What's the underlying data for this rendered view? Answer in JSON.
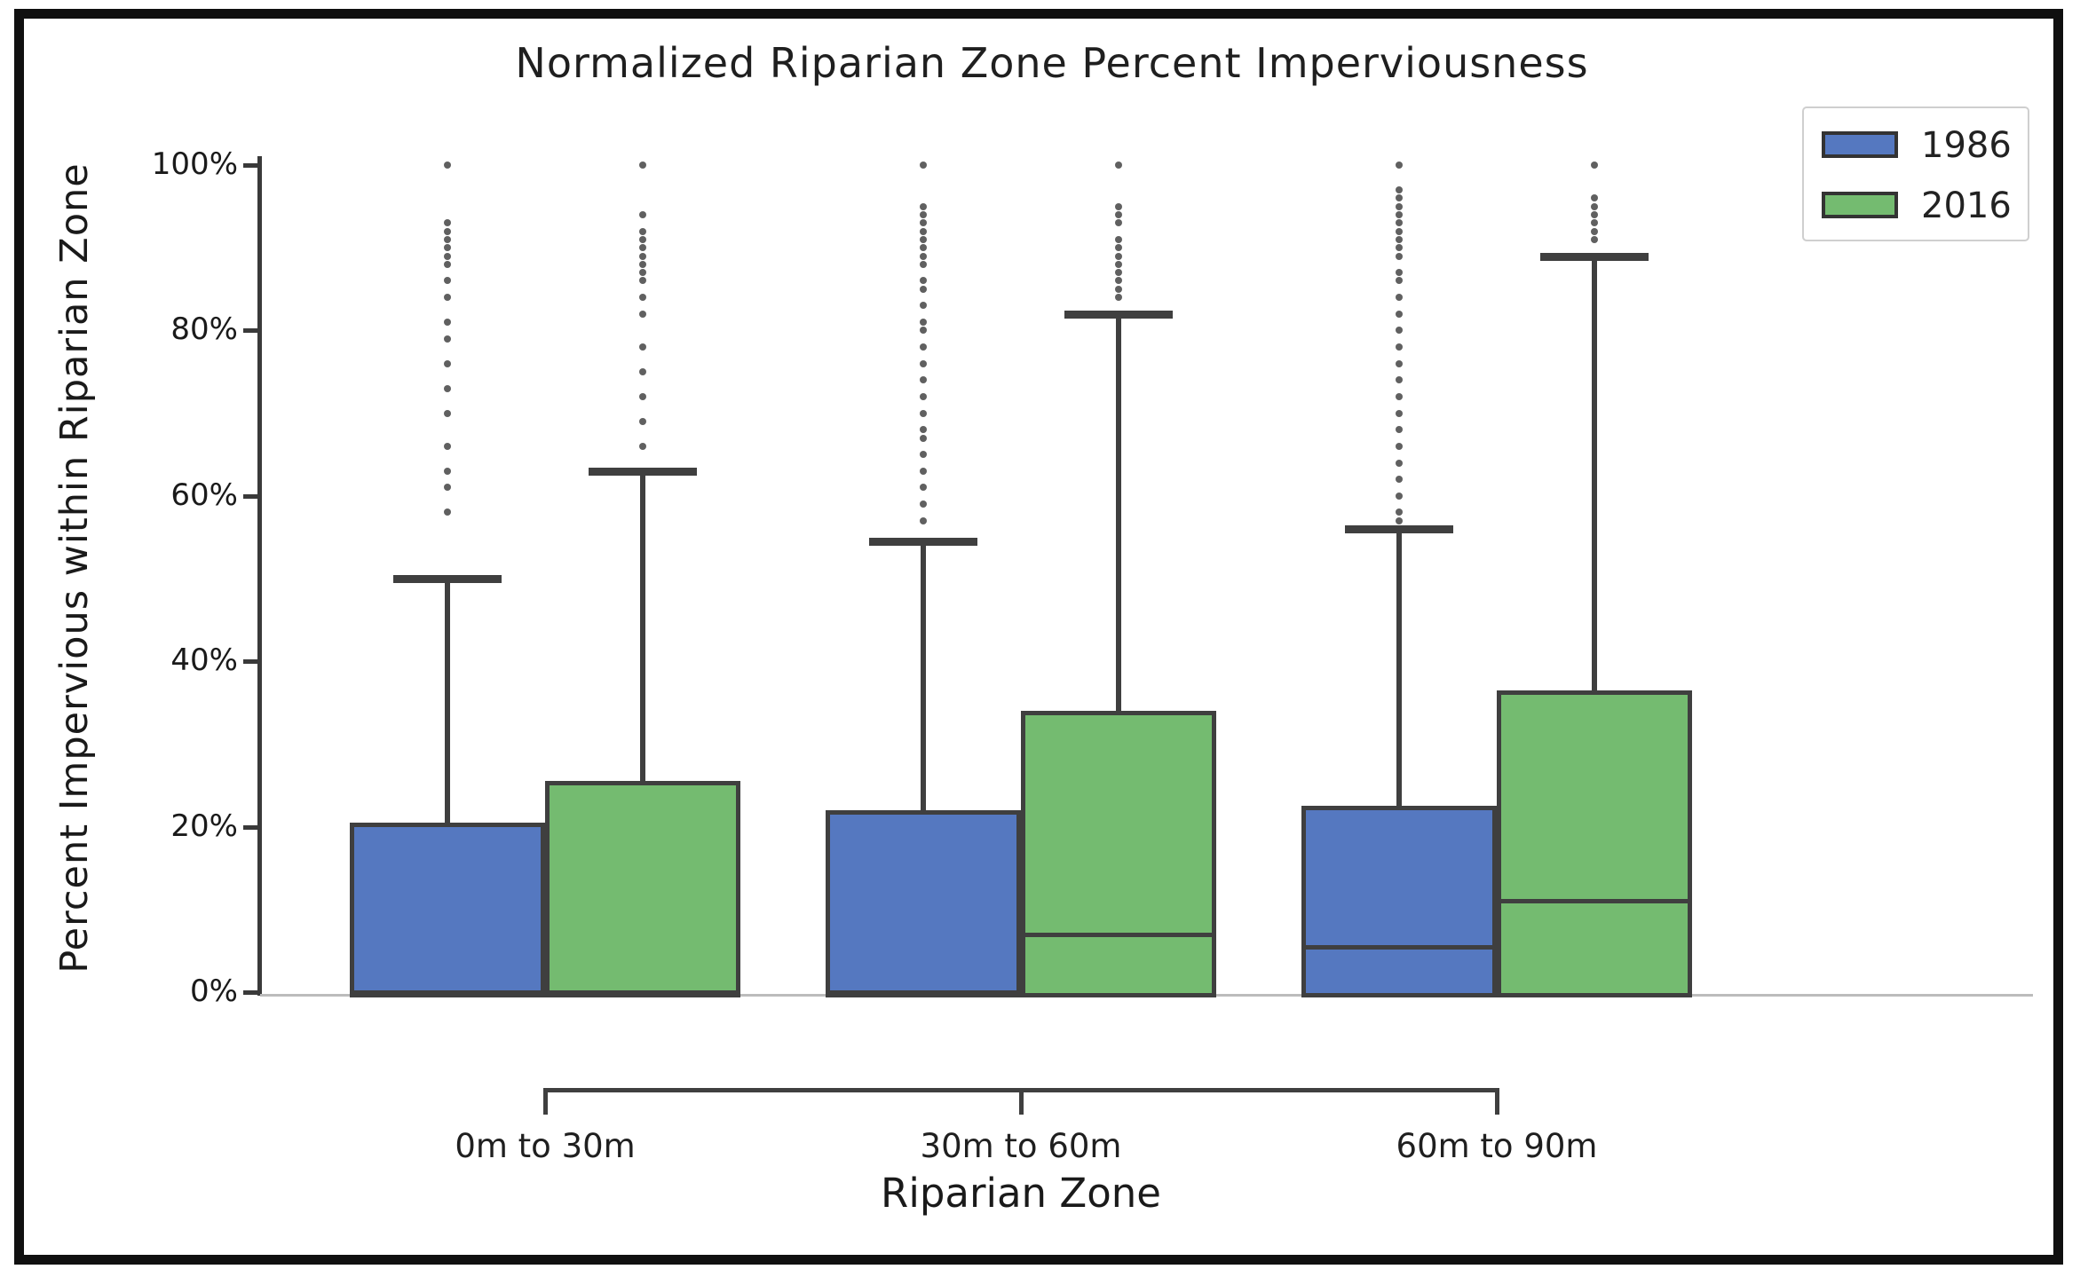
{
  "title": "Normalized Riparian Zone Percent Imperviousness",
  "y_axis": {
    "label": "Percent Impervious within Riparian Zone",
    "tick_values": [
      0,
      20,
      40,
      60,
      80,
      100
    ],
    "tick_labels": [
      "0%",
      "20%",
      "40%",
      "60%",
      "80%",
      "100%"
    ]
  },
  "x_axis": {
    "label": "Riparian Zone",
    "categories": [
      "0m to 30m",
      "30m to 60m",
      "60m to 90m"
    ]
  },
  "legend": {
    "entries": [
      {
        "label": "1986",
        "color": "#5578c0"
      },
      {
        "label": "2016",
        "color": "#74bb70"
      }
    ]
  },
  "colors": {
    "series_1986": "#5578c0",
    "series_2016": "#74bb70",
    "box_edge": "#3f3f3f",
    "frame": "#101010"
  },
  "chart_data": {
    "type": "boxplot",
    "title": "Normalized Riparian Zone Percent Imperviousness",
    "xlabel": "Riparian Zone",
    "ylabel": "Percent Impervious within Riparian Zone",
    "ylim": [
      0,
      100
    ],
    "y_unit": "%",
    "grid": false,
    "legend_position": "upper right",
    "categories": [
      "0m to 30m",
      "30m to 60m",
      "60m to 90m"
    ],
    "series": [
      {
        "name": "1986",
        "color": "#5578c0",
        "boxes": [
          {
            "category": "0m to 30m",
            "q1": 0,
            "median": 0,
            "q3": 20.5,
            "whisker_low": 0,
            "whisker_high": 50,
            "outliers": [
              58,
              61,
              63,
              66,
              70,
              73,
              76,
              79,
              81,
              84,
              86,
              88,
              89,
              90,
              91,
              92,
              93,
              100
            ]
          },
          {
            "category": "30m to 60m",
            "q1": 0,
            "median": 0,
            "q3": 22,
            "whisker_low": 0,
            "whisker_high": 54.5,
            "outliers": [
              57,
              59,
              61,
              63,
              65,
              67,
              68,
              70,
              72,
              74,
              76,
              78,
              80,
              81,
              83,
              85,
              86,
              88,
              89,
              90,
              91,
              92,
              93,
              94,
              95,
              100
            ]
          },
          {
            "category": "60m to 90m",
            "q1": 0,
            "median": 5.5,
            "q3": 22.5,
            "whisker_low": 0,
            "whisker_high": 56,
            "outliers": [
              57,
              58,
              60,
              62,
              64,
              66,
              68,
              70,
              72,
              74,
              76,
              78,
              80,
              82,
              84,
              86,
              87,
              89,
              90,
              91,
              92,
              93,
              94,
              95,
              96,
              97,
              100
            ]
          }
        ]
      },
      {
        "name": "2016",
        "color": "#74bb70",
        "boxes": [
          {
            "category": "0m to 30m",
            "q1": 0,
            "median": 0,
            "q3": 25.5,
            "whisker_low": 0,
            "whisker_high": 63,
            "outliers": [
              66,
              69,
              72,
              75,
              78,
              82,
              84,
              86,
              87,
              88,
              89,
              90,
              91,
              92,
              94,
              100
            ]
          },
          {
            "category": "30m to 60m",
            "q1": 0,
            "median": 7,
            "q3": 34,
            "whisker_low": 0,
            "whisker_high": 82,
            "outliers": [
              84,
              85,
              86,
              87,
              88,
              89,
              90,
              91,
              93,
              94,
              95,
              100
            ]
          },
          {
            "category": "60m to 90m",
            "q1": 0,
            "median": 11,
            "q3": 36.5,
            "whisker_low": 0,
            "whisker_high": 89,
            "outliers": [
              91,
              92,
              93,
              94,
              95,
              96,
              100
            ]
          }
        ]
      }
    ]
  }
}
